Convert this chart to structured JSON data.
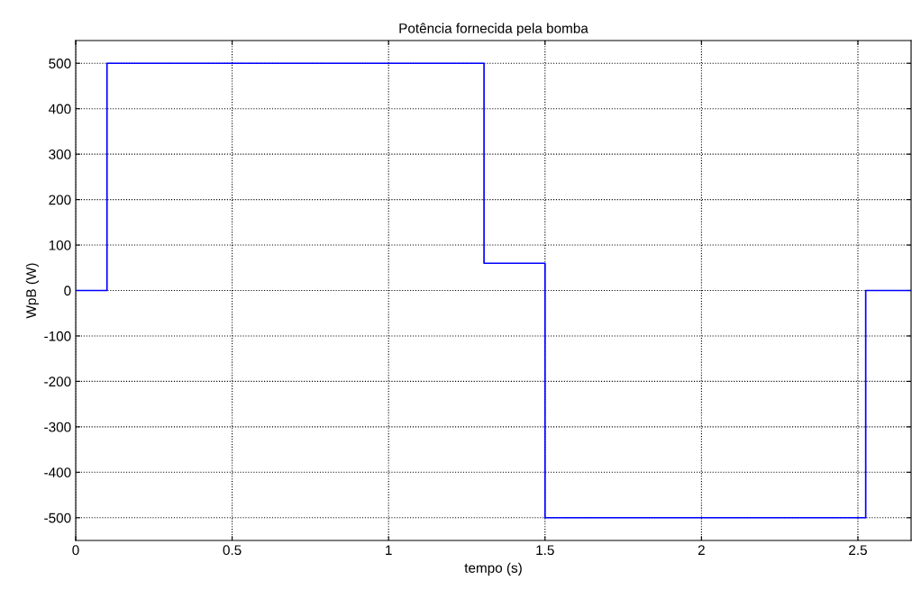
{
  "chart_data": {
    "type": "step",
    "title": "Potência fornecida pela bomba",
    "xlabel": "tempo (s)",
    "ylabel": "WpB (W)",
    "x": [
      0,
      0.1,
      1.305,
      1.5,
      2.525,
      2.67
    ],
    "series": [
      {
        "color": "#0000ff",
        "values": [
          0,
          500,
          60,
          -500,
          0,
          0
        ]
      }
    ],
    "xlim": [
      0,
      2.67
    ],
    "ylim": [
      -550,
      550
    ],
    "xticks": [
      0,
      0.5,
      1,
      1.5,
      2,
      2.5
    ],
    "yticks": [
      -500,
      -400,
      -300,
      -200,
      -100,
      0,
      100,
      200,
      300,
      400,
      500
    ],
    "grid": true,
    "line_style": "solid",
    "legend": false
  }
}
